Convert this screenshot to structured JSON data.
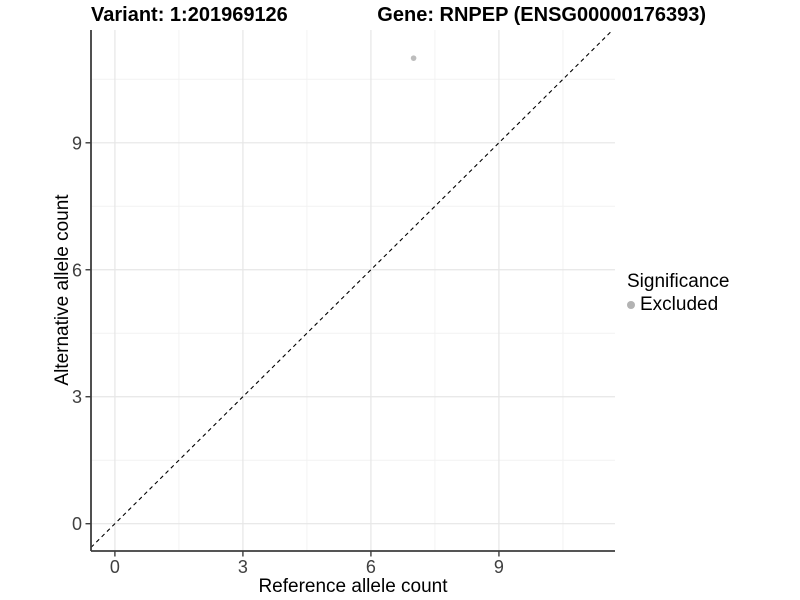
{
  "chart_data": {
    "type": "scatter",
    "title_left": "Variant: 1:201969126",
    "title_right": "Gene: RNPEP (ENSG00000176393)",
    "xlabel": "Reference allele count",
    "ylabel": "Alternative allele count",
    "x_breaks": [
      0,
      3,
      6,
      9
    ],
    "y_breaks": [
      0,
      3,
      6,
      9
    ],
    "x_minor_breaks": [
      1.5,
      4.5,
      7.5,
      10.5
    ],
    "y_minor_breaks": [
      1.5,
      4.5,
      7.5,
      10.5
    ],
    "xlim": [
      -0.56,
      11.72
    ],
    "ylim": [
      -0.645,
      11.665
    ],
    "grid": true,
    "legend_position": "right",
    "series": [
      {
        "name": "Excluded",
        "points": [
          {
            "x": 7,
            "y": 11
          }
        ]
      }
    ],
    "reference_line": {
      "kind": "identity",
      "slope": 1,
      "intercept": 0,
      "style": "dashed"
    },
    "legend": {
      "title": "Significance",
      "entries": [
        {
          "label": "Excluded",
          "color": "#b3b3b3"
        }
      ]
    },
    "colors": {
      "background": "#ffffff",
      "grid_major": "#e6e6e6",
      "grid_minor": "#f2f2f2",
      "axis": "#3d3d3d",
      "tick_label": "#404040",
      "title": "#000000",
      "point": "#bdbdbd",
      "reference_line": "#000000"
    }
  }
}
